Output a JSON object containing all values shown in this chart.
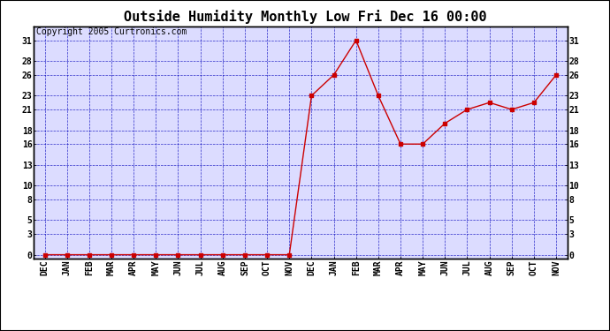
{
  "title": "Outside Humidity Monthly Low Fri Dec 16 00:00",
  "copyright": "Copyright 2005 Curtronics.com",
  "x_labels": [
    "DEC",
    "JAN",
    "FEB",
    "MAR",
    "APR",
    "MAY",
    "JUN",
    "JUL",
    "AUG",
    "SEP",
    "OCT",
    "NOV",
    "DEC",
    "JAN",
    "FEB",
    "MAR",
    "APR",
    "MAY",
    "JUN",
    "JUL",
    "AUG",
    "SEP",
    "OCT",
    "NOV"
  ],
  "y_values": [
    0,
    0,
    0,
    0,
    0,
    0,
    0,
    0,
    0,
    0,
    0,
    0,
    23,
    26,
    31,
    23,
    16,
    16,
    19,
    21,
    22,
    21,
    22,
    26
  ],
  "y_ticks": [
    0,
    3,
    5,
    8,
    10,
    13,
    16,
    18,
    21,
    23,
    26,
    28,
    31
  ],
  "ylim": [
    -0.5,
    33
  ],
  "line_color": "#CC0000",
  "marker_color": "#CC0000",
  "bg_color": "#FFFFFF",
  "plot_bg_color": "#DCDCFF",
  "grid_color": "#0000BB",
  "border_color": "#000000",
  "title_fontsize": 11,
  "tick_fontsize": 7,
  "copyright_fontsize": 7
}
